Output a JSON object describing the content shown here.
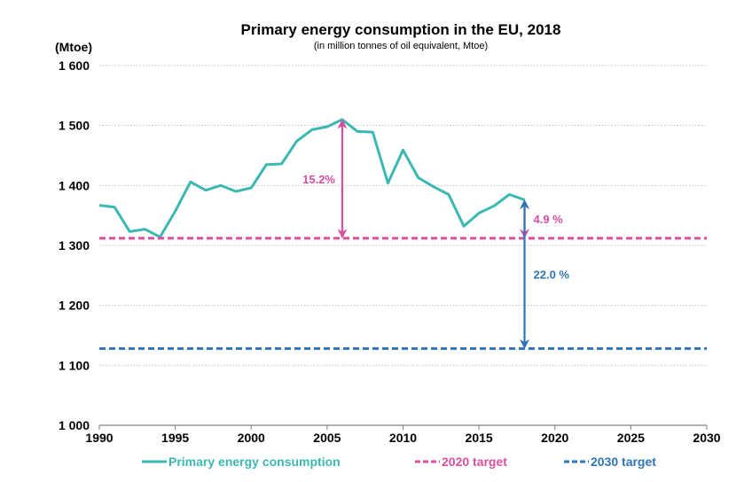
{
  "chart_data": {
    "type": "line",
    "title": "Primary energy consumption in the EU, 2018",
    "subtitle": "(in million tonnes of oil equivalent,  Mtoe)",
    "ylabel": "(Mtoe)",
    "xlim": [
      1990,
      2030
    ],
    "ylim": [
      1000,
      1600
    ],
    "x_ticks": [
      1990,
      1995,
      2000,
      2005,
      2010,
      2015,
      2020,
      2025,
      2030
    ],
    "x_tick_labels": [
      "1990",
      "1995",
      "2000",
      "2005",
      "2010",
      "2015",
      "2020",
      "2025",
      "2030"
    ],
    "y_ticks": [
      1000,
      1100,
      1200,
      1300,
      1400,
      1500,
      1600
    ],
    "y_tick_labels": [
      "1 000",
      "1 100",
      "1 200",
      "1 300",
      "1 400",
      "1 500",
      "1 600"
    ],
    "grid": true,
    "legend_position": "bottom",
    "series": [
      {
        "name": "Primary energy consumption",
        "style": "solid",
        "color": "#3CB8B2",
        "x": [
          1990,
          1991,
          1992,
          1993,
          1994,
          1995,
          1996,
          1997,
          1998,
          1999,
          2000,
          2001,
          2002,
          2003,
          2004,
          2005,
          2006,
          2007,
          2008,
          2009,
          2010,
          2011,
          2012,
          2013,
          2014,
          2015,
          2016,
          2017,
          2018
        ],
        "y": [
          1367,
          1364,
          1323,
          1327,
          1314,
          1357,
          1406,
          1392,
          1400,
          1390,
          1396,
          1435,
          1436,
          1474,
          1493,
          1498,
          1510,
          1490,
          1489,
          1404,
          1459,
          1413,
          1398,
          1385,
          1332,
          1354,
          1366,
          1385,
          1376
        ]
      },
      {
        "name": "2020 target",
        "style": "dashed",
        "color": "#D94F9F",
        "x": [
          1990,
          2030
        ],
        "y": [
          1312,
          1312
        ]
      },
      {
        "name": "2030 target",
        "style": "dashed",
        "color": "#2E75B6",
        "x": [
          1990,
          2030
        ],
        "y": [
          1128,
          1128
        ]
      }
    ],
    "annotations": [
      {
        "text": "15.2%",
        "color": "#D94F9F",
        "x": 2006,
        "y_from": 1312,
        "y_to": 1510,
        "label_side": "left"
      },
      {
        "text": "4.9 %",
        "color": "#D94F9F",
        "x": 2018,
        "y_from": 1312,
        "y_to": 1376,
        "label_side": "right"
      },
      {
        "text": "22.0 %",
        "color": "#2E75B6",
        "x": 2018,
        "y_from": 1128,
        "y_to": 1376,
        "label_side": "right"
      }
    ]
  }
}
